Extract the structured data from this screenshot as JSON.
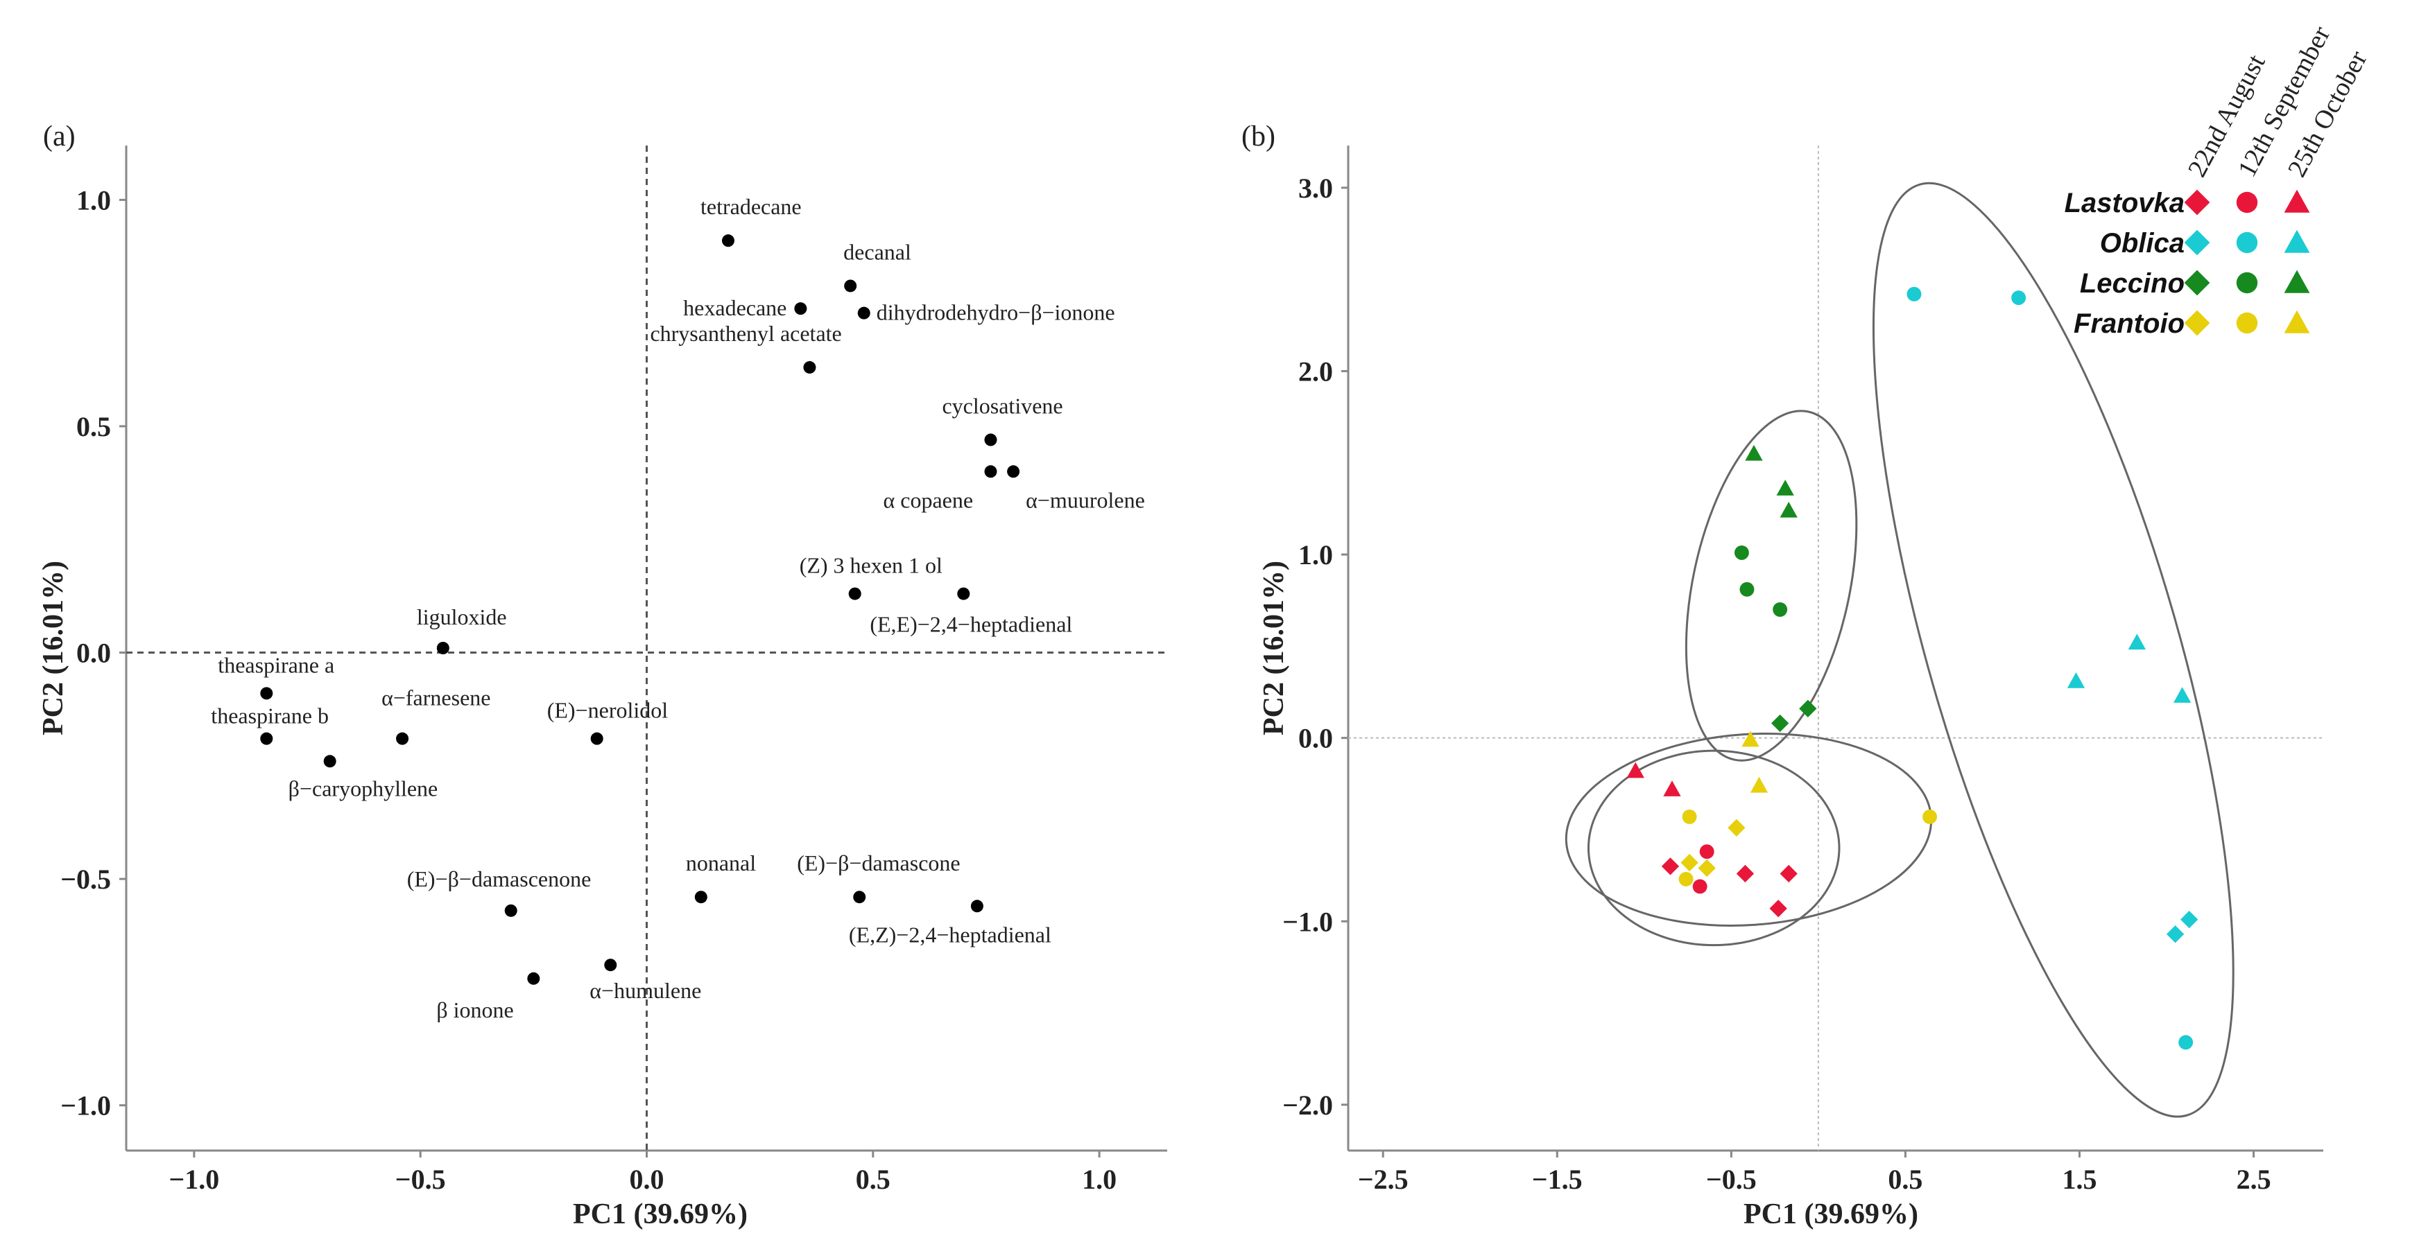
{
  "chart_data": [
    {
      "id": "a",
      "type": "scatter",
      "panel_label": "(a)",
      "xlabel": "PC1 (39.69%)",
      "ylabel": "PC2 (16.01%)",
      "xlim": [
        -1.15,
        1.15
      ],
      "ylim": [
        -1.1,
        1.12
      ],
      "xticks": [
        -1.0,
        -0.5,
        0.0,
        0.5,
        1.0
      ],
      "yticks": [
        -1.0,
        -0.5,
        0.0,
        0.5,
        1.0
      ],
      "xtick_labels": [
        "−1.0",
        "−0.5",
        "0.0",
        "0.5",
        "1.0"
      ],
      "ytick_labels": [
        "−1.0",
        "−0.5",
        "0.0",
        "0.5",
        "1.0"
      ],
      "points": [
        {
          "label": "tetradecane",
          "x": 0.18,
          "y": 0.91
        },
        {
          "label": "decanal",
          "x": 0.45,
          "y": 0.81
        },
        {
          "label": "hexadecane",
          "x": 0.34,
          "y": 0.76
        },
        {
          "label": "dihydrodehydro−β−ionone",
          "x": 0.48,
          "y": 0.75
        },
        {
          "label": "chrysanthenyl acetate",
          "x": 0.36,
          "y": 0.63
        },
        {
          "label": "cyclosativene",
          "x": 0.76,
          "y": 0.47
        },
        {
          "label": "α copaene",
          "x": 0.76,
          "y": 0.4
        },
        {
          "label": "α−muurolene",
          "x": 0.81,
          "y": 0.4
        },
        {
          "label": "(Z) 3 hexen 1 ol",
          "x": 0.46,
          "y": 0.13
        },
        {
          "label": "(E,E)−2,4−heptadienal",
          "x": 0.7,
          "y": 0.13
        },
        {
          "label": "liguloxide",
          "x": -0.45,
          "y": 0.01
        },
        {
          "label": "theaspirane a",
          "x": -0.84,
          "y": -0.09
        },
        {
          "label": "theaspirane b",
          "x": -0.84,
          "y": -0.19
        },
        {
          "label": "α−farnesene",
          "x": -0.54,
          "y": -0.19
        },
        {
          "label": "β−caryophyllene",
          "x": -0.7,
          "y": -0.24
        },
        {
          "label": "(E)−nerolidol",
          "x": -0.11,
          "y": -0.19
        },
        {
          "label": "(E)−β−damascenone",
          "x": -0.3,
          "y": -0.57
        },
        {
          "label": "nonanal",
          "x": 0.12,
          "y": -0.54
        },
        {
          "label": "(E)−β−damascone",
          "x": 0.47,
          "y": -0.54
        },
        {
          "label": "(E,Z)−2,4−heptadienal",
          "x": 0.73,
          "y": -0.56
        },
        {
          "label": "β ionone",
          "x": -0.25,
          "y": -0.72
        },
        {
          "label": "α−humulene",
          "x": -0.08,
          "y": -0.69
        }
      ]
    },
    {
      "id": "b",
      "type": "scatter",
      "panel_label": "(b)",
      "xlabel": "PC1 (39.69%)",
      "ylabel": "PC2 (16.01%)",
      "xlim": [
        -2.7,
        2.9
      ],
      "ylim": [
        -2.25,
        3.23
      ],
      "xticks": [
        -2.5,
        -1.5,
        -0.5,
        0.5,
        1.5,
        2.5
      ],
      "yticks": [
        -2.0,
        -1.0,
        0.0,
        1.0,
        2.0,
        3.0
      ],
      "xtick_labels": [
        "−2.5",
        "−1.5",
        "−0.5",
        "0.5",
        "1.5",
        "2.5"
      ],
      "ytick_labels": [
        "−2.0",
        "−1.0",
        "0.0",
        "1.0",
        "2.0",
        "3.0"
      ],
      "legend": {
        "placement": "top-right",
        "dates": [
          "22nd August",
          "12th September",
          "25th October"
        ],
        "cultivars": [
          {
            "name": "Lastovka",
            "color": "#E8173A"
          },
          {
            "name": "Oblica",
            "color": "#1ACBD2"
          },
          {
            "name": "Leccino",
            "color": "#168A1E"
          },
          {
            "name": "Frantoio",
            "color": "#E7CF0C"
          }
        ],
        "markers": [
          "diamond",
          "circle",
          "triangle"
        ]
      },
      "series": [
        {
          "cultivar": "Lastovka",
          "date": "22nd August",
          "marker": "diamond",
          "color": "#E8173A",
          "points": [
            [
              -0.85,
              -0.7
            ],
            [
              -0.42,
              -0.74
            ],
            [
              -0.17,
              -0.74
            ],
            [
              -0.23,
              -0.93
            ]
          ]
        },
        {
          "cultivar": "Lastovka",
          "date": "12th September",
          "marker": "circle",
          "color": "#E8173A",
          "points": [
            [
              -0.64,
              -0.62
            ],
            [
              -0.68,
              -0.81
            ]
          ]
        },
        {
          "cultivar": "Lastovka",
          "date": "25th October",
          "marker": "triangle",
          "color": "#E8173A",
          "points": [
            [
              -1.05,
              -0.18
            ],
            [
              -0.84,
              -0.28
            ]
          ]
        },
        {
          "cultivar": "Oblica",
          "date": "22nd August",
          "marker": "diamond",
          "color": "#1ACBD2",
          "points": [
            [
              2.05,
              -1.07
            ],
            [
              2.13,
              -0.99
            ]
          ]
        },
        {
          "cultivar": "Oblica",
          "date": "12th September",
          "marker": "circle",
          "color": "#1ACBD2",
          "points": [
            [
              0.55,
              2.42
            ],
            [
              1.15,
              2.4
            ],
            [
              2.11,
              -1.66
            ]
          ]
        },
        {
          "cultivar": "Oblica",
          "date": "25th October",
          "marker": "triangle",
          "color": "#1ACBD2",
          "points": [
            [
              1.48,
              0.31
            ],
            [
              1.83,
              0.52
            ],
            [
              2.09,
              0.23
            ]
          ]
        },
        {
          "cultivar": "Leccino",
          "date": "22nd August",
          "marker": "diamond",
          "color": "#168A1E",
          "points": [
            [
              -0.22,
              0.08
            ],
            [
              -0.06,
              0.16
            ]
          ]
        },
        {
          "cultivar": "Leccino",
          "date": "12th September",
          "marker": "circle",
          "color": "#168A1E",
          "points": [
            [
              -0.44,
              1.01
            ],
            [
              -0.41,
              0.81
            ],
            [
              -0.22,
              0.7
            ]
          ]
        },
        {
          "cultivar": "Leccino",
          "date": "25th October",
          "marker": "triangle",
          "color": "#168A1E",
          "points": [
            [
              -0.37,
              1.55
            ],
            [
              -0.19,
              1.36
            ],
            [
              -0.17,
              1.24
            ]
          ]
        },
        {
          "cultivar": "Frantoio",
          "date": "22nd August",
          "marker": "diamond",
          "color": "#E7CF0C",
          "points": [
            [
              -0.74,
              -0.68
            ],
            [
              -0.64,
              -0.71
            ],
            [
              -0.47,
              -0.49
            ]
          ]
        },
        {
          "cultivar": "Frantoio",
          "date": "12th September",
          "marker": "circle",
          "color": "#E7CF0C",
          "points": [
            [
              -0.74,
              -0.43
            ],
            [
              -0.76,
              -0.77
            ],
            [
              0.64,
              -0.43
            ]
          ]
        },
        {
          "cultivar": "Frantoio",
          "date": "25th October",
          "marker": "triangle",
          "color": "#E7CF0C",
          "points": [
            [
              -0.39,
              -0.01
            ],
            [
              -0.34,
              -0.26
            ]
          ]
        }
      ],
      "ellipses": [
        {
          "group": "Leccino",
          "cx": -0.27,
          "cy": 0.83,
          "rx": 0.45,
          "ry": 0.97,
          "angle_deg": -12
        },
        {
          "group": "Frantoio",
          "cx": -0.4,
          "cy": -0.5,
          "rx": 1.05,
          "ry": 0.52,
          "angle_deg": 4
        },
        {
          "group": "Lastovka",
          "cx": -0.6,
          "cy": -0.6,
          "rx": 0.72,
          "ry": 0.53,
          "angle_deg": 0
        },
        {
          "group": "Oblica",
          "cx": 1.35,
          "cy": 0.48,
          "rx": 0.72,
          "ry": 2.64,
          "angle_deg": 16
        }
      ]
    }
  ]
}
